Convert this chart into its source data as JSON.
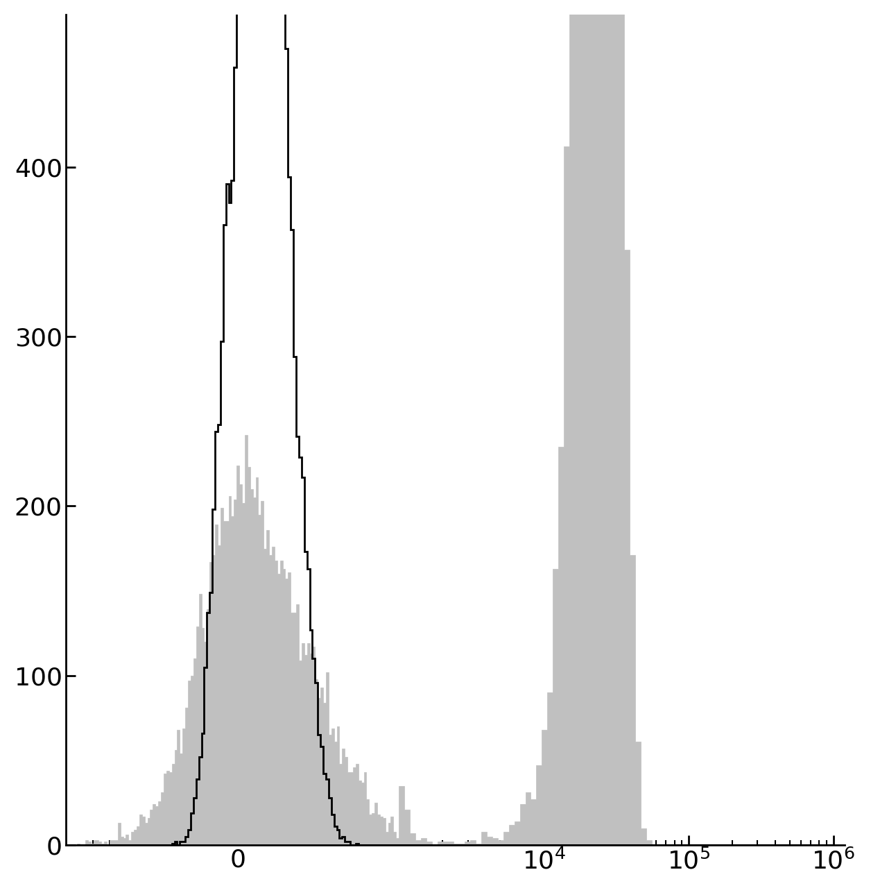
{
  "ylim": [
    0,
    490
  ],
  "yticks": [
    0,
    100,
    200,
    300,
    400
  ],
  "background_color": "#ffffff",
  "black_hist_color": "#000000",
  "gray_hist_color": "#c0c0c0",
  "black_hist_linewidth": 2.0,
  "linthresh": 1000,
  "linscale": 1.0,
  "black_seed": 10,
  "gray_seed": 7,
  "n_black": 20000,
  "n_gray": 20000
}
